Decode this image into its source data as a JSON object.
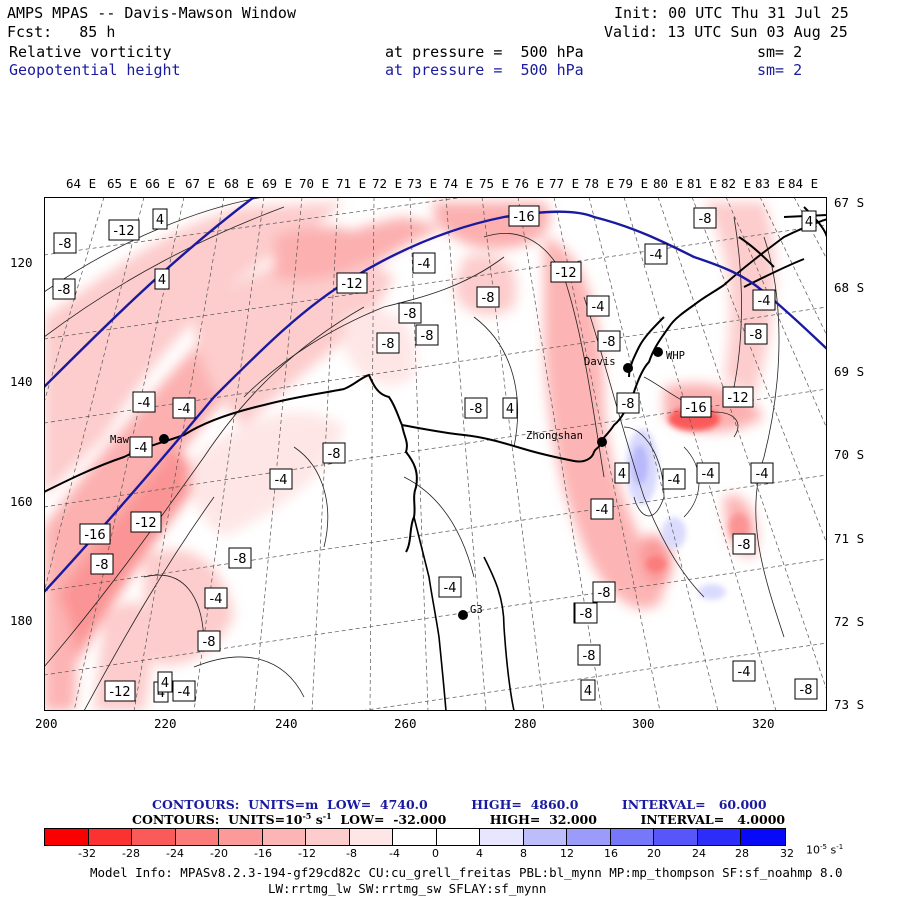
{
  "header": {
    "title": "AMPS MPAS -- Davis-Mawson Window",
    "fcst": "Fcst:   85 h",
    "init": "Init: 00 UTC Thu 31 Jul 25",
    "valid": "Valid: 13 UTC Sun 03 Aug 25",
    "field1": "Relative vorticity",
    "field1_level": "at pressure =  500 hPa",
    "field1_sm": "sm= 2",
    "field2": "Geopotential height",
    "field2_level": "at pressure =  500 hPa",
    "field2_sm": "sm= 2"
  },
  "longitude_labels": [
    "64 E",
    "65 E",
    "66 E",
    "67 E",
    "68 E",
    "69 E",
    "70 E",
    "71 E",
    "72 E",
    "73 E",
    "74 E",
    "75 E",
    "76 E",
    "77 E",
    "78 E",
    "79 E",
    "80 E",
    "81 E",
    "82 E",
    "83 E",
    "84 E"
  ],
  "latitude_labels": [
    "67 S",
    "68 S",
    "69 S",
    "70 S",
    "71 S",
    "72 S",
    "73 S"
  ],
  "grid_y_labels": [
    "120",
    "140",
    "160",
    "180"
  ],
  "grid_x_labels": [
    "200",
    "220",
    "240",
    "260",
    "280",
    "300",
    "320"
  ],
  "stations": [
    {
      "name": "Mawson"
    },
    {
      "name": "Davis"
    },
    {
      "name": "WHP"
    },
    {
      "name": "Zhongshan"
    },
    {
      "name": "G3"
    }
  ],
  "contour_labels": [
    {
      "text": "-8"
    },
    {
      "text": "-12"
    },
    {
      "text": "4"
    },
    {
      "text": "-8"
    },
    {
      "text": "4"
    },
    {
      "text": "-16"
    },
    {
      "text": "-8"
    },
    {
      "text": "-4"
    },
    {
      "text": "-12"
    },
    {
      "text": "-4"
    },
    {
      "text": "-4"
    },
    {
      "text": "-12"
    },
    {
      "text": "-8"
    },
    {
      "text": "-8"
    },
    {
      "text": "-8"
    },
    {
      "text": "-4"
    },
    {
      "text": "-8"
    },
    {
      "text": "-4"
    },
    {
      "text": "-8"
    },
    {
      "text": "-4"
    },
    {
      "text": "-8"
    },
    {
      "text": "-12"
    },
    {
      "text": "4"
    },
    {
      "text": "4"
    },
    {
      "text": "-4"
    },
    {
      "text": "-8"
    },
    {
      "text": "4"
    },
    {
      "text": "-8"
    },
    {
      "text": "-16"
    },
    {
      "text": "-12"
    },
    {
      "text": "-4"
    },
    {
      "text": "-4"
    },
    {
      "text": "4"
    },
    {
      "text": "-8"
    },
    {
      "text": "-4"
    },
    {
      "text": "-8"
    },
    {
      "text": "-12"
    },
    {
      "text": "-16"
    },
    {
      "text": "-8"
    },
    {
      "text": "-8"
    },
    {
      "text": "-4"
    },
    {
      "text": "-8"
    },
    {
      "text": "-4"
    },
    {
      "text": "-4"
    },
    {
      "text": "-8"
    },
    {
      "text": "-8"
    },
    {
      "text": "-4"
    },
    {
      "text": "-4"
    },
    {
      "text": "4"
    },
    {
      "text": "-4"
    },
    {
      "text": "-8"
    },
    {
      "text": "4"
    },
    {
      "text": "-8"
    },
    {
      "text": "-4"
    }
  ],
  "contour_info": {
    "line1": "CONTOURS:  UNITS=m  LOW=  4740.0          HIGH=  4860.0          INTERVAL=   60.000",
    "line2": "CONTOURS:  UNITS=10",
    "line2_exp": "-5",
    "line2_unit": " s",
    "line2_unit_exp": "-1",
    "line2_rest": "  LOW=  -32.000          HIGH=  32.000          INTERVAL=   4.0000"
  },
  "colorbar": {
    "labels": [
      "-32",
      "-28",
      "-24",
      "-20",
      "-16",
      "-12",
      "-8",
      "-4",
      "0",
      "4",
      "8",
      "12",
      "16",
      "20",
      "24",
      "28",
      "32"
    ],
    "units": "10",
    "units_exp": "-5",
    "units_s": " s",
    "units_s_exp": "-1",
    "colors": [
      "#fb0000",
      "#fb3232",
      "#fb5a5a",
      "#fb7b7b",
      "#fc9999",
      "#fdb4b4",
      "#fdcccc",
      "#fee6e6",
      "#ffffff",
      "#ffffff",
      "#e6e6fe",
      "#bdbdfb",
      "#9b9bfa",
      "#7777f9",
      "#5656f9",
      "#2d2df9",
      "#0909f9"
    ]
  },
  "model_info": {
    "line1": "Model Info: MPASv8.2.3-194-gf29cd82c CU:cu_grell_freitas PBL:bl_mynn MP:mp_thompson SF:sf_noahmp 8.0",
    "line2": "LW:rrtmg_lw SW:rrtmg_sw SFLAY:sf_mynn"
  }
}
